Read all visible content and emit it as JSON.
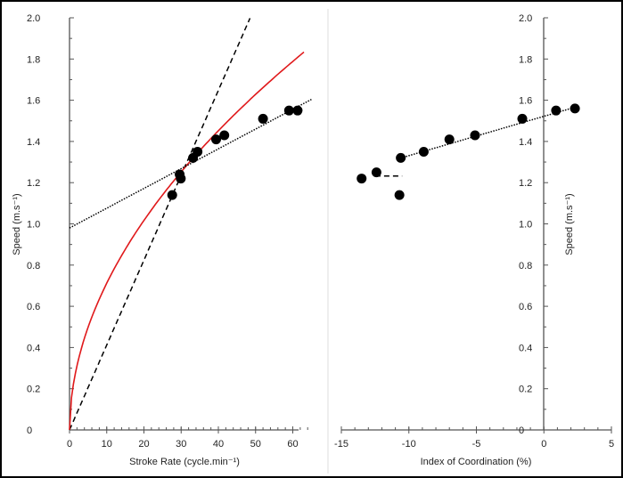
{
  "chart_data": [
    {
      "type": "scatter",
      "xlabel": "Stroke Rate (cycle.min⁻¹)",
      "ylabel": "Speed (m.s⁻¹)",
      "xlim": [
        0,
        65
      ],
      "ylim": [
        0,
        2.0
      ],
      "xticks": [
        "0",
        "10",
        "20",
        "30",
        "40",
        "50",
        "60"
      ],
      "xtick_values": [
        0,
        10,
        20,
        30,
        40,
        50,
        60
      ],
      "yticks": [
        "0",
        "0.2",
        "0.4",
        "0.6",
        "0.8",
        "1.0",
        "1.2",
        "1.4",
        "1.6",
        "1.8",
        "2.0"
      ],
      "ytick_values": [
        0,
        0.2,
        0.4,
        0.6,
        0.8,
        1.0,
        1.2,
        1.4,
        1.6,
        1.8,
        2.0
      ],
      "points": {
        "x": [
          27.6,
          29.6,
          29.9,
          33.2,
          34.4,
          39.4,
          41.6,
          52.0,
          59.0,
          61.3
        ],
        "y": [
          1.14,
          1.24,
          1.22,
          1.32,
          1.35,
          1.41,
          1.43,
          1.51,
          1.55,
          1.55
        ]
      },
      "fits": [
        {
          "name": "linear through origin",
          "style": "dashed",
          "color": "#000000",
          "slope": 0.0412,
          "intercept": 0,
          "x_range": [
            0,
            48.5
          ]
        },
        {
          "name": "power curve",
          "style": "solid",
          "color": "#e0191b",
          "a": 0.218,
          "b": 0.514,
          "x_range": [
            0,
            63
          ]
        },
        {
          "name": "linear regression",
          "style": "dotted",
          "color": "#000000",
          "slope": 0.0096,
          "intercept": 0.98,
          "x_range": [
            0,
            65
          ]
        }
      ],
      "grid": false
    },
    {
      "type": "scatter",
      "xlabel": "Index of Coordination (%)",
      "ylabel": "Speed (m.s⁻¹)",
      "xlim": [
        -15,
        5
      ],
      "ylim": [
        0,
        2.0
      ],
      "xticks": [
        "-15",
        "-10",
        "-5",
        "0",
        "5"
      ],
      "xtick_values": [
        -15,
        -10,
        -5,
        0,
        5
      ],
      "yticks": [
        "0",
        "0.2",
        "0.4",
        "0.6",
        "0.8",
        "1.0",
        "1.2",
        "1.4",
        "1.6",
        "1.8",
        "2.0"
      ],
      "ytick_values": [
        0,
        0.2,
        0.4,
        0.6,
        0.8,
        1.0,
        1.2,
        1.4,
        1.6,
        1.8,
        2.0
      ],
      "points": {
        "x": [
          -13.5,
          -12.4,
          -10.7,
          -10.6,
          -8.9,
          -7.0,
          -5.1,
          -1.6,
          0.9,
          2.3
        ],
        "y": [
          1.22,
          1.25,
          1.14,
          1.32,
          1.35,
          1.41,
          1.43,
          1.51,
          1.55,
          1.56
        ]
      },
      "fits": [
        {
          "name": "dashed segment",
          "style": "dashed",
          "color": "#000000",
          "slope": 0,
          "intercept": 1.232,
          "x_range": [
            -12.5,
            -10.5
          ]
        },
        {
          "name": "dotted trend",
          "style": "dotted",
          "color": "#000000",
          "slope": 0.0191,
          "intercept": 1.522,
          "x_range": [
            -10.6,
            2.5
          ]
        }
      ],
      "grid": false
    }
  ]
}
